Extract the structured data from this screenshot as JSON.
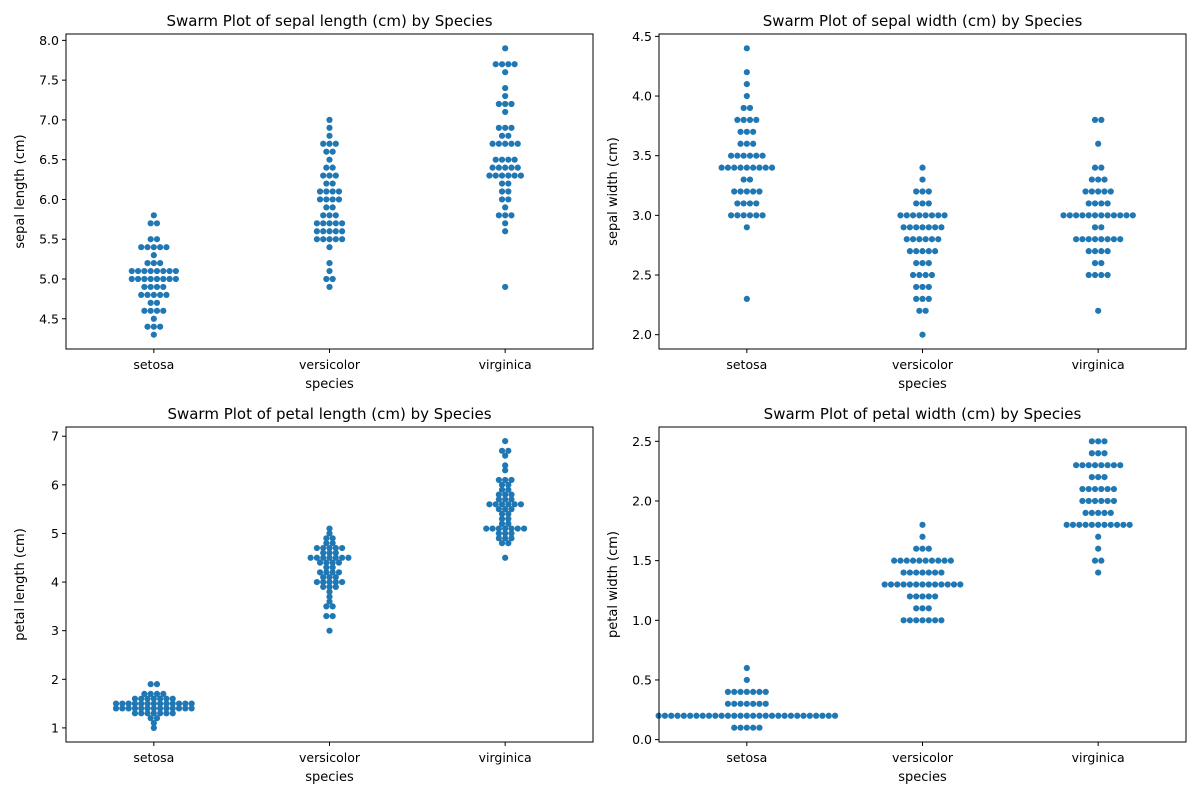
{
  "chart_data": [
    {
      "type": "scatter",
      "subtype": "swarm",
      "title": "Swarm Plot of sepal length (cm) by Species",
      "xlabel": "species",
      "ylabel": "sepal length (cm)",
      "categories": [
        "setosa",
        "versicolor",
        "virginica"
      ],
      "ylim": [
        4.12,
        8.08
      ],
      "yticks": [
        4.5,
        5.0,
        5.5,
        6.0,
        6.5,
        7.0,
        7.5,
        8.0
      ],
      "ytick_labels": [
        "4.5",
        "5.0",
        "5.5",
        "6.0",
        "6.5",
        "7.0",
        "7.5",
        "8.0"
      ],
      "color": "#1f77b4",
      "values": [
        [
          5.1,
          4.9,
          4.7,
          4.6,
          5.0,
          5.4,
          4.6,
          5.0,
          4.4,
          4.9,
          5.4,
          4.8,
          4.8,
          4.3,
          5.8,
          5.7,
          5.4,
          5.1,
          5.7,
          5.1,
          5.4,
          5.1,
          4.6,
          5.1,
          4.8,
          5.0,
          5.0,
          5.2,
          5.2,
          4.7,
          4.8,
          5.4,
          5.2,
          5.5,
          4.9,
          5.0,
          5.5,
          4.9,
          4.4,
          5.1,
          5.0,
          4.5,
          4.4,
          5.0,
          5.1,
          4.8,
          5.1,
          4.6,
          5.3,
          5.0
        ],
        [
          7.0,
          6.4,
          6.9,
          5.5,
          6.5,
          5.7,
          6.3,
          4.9,
          6.6,
          5.2,
          5.0,
          5.9,
          6.0,
          6.1,
          5.6,
          6.7,
          5.6,
          5.8,
          6.2,
          5.6,
          5.9,
          6.1,
          6.3,
          6.1,
          6.4,
          6.6,
          6.8,
          6.7,
          6.0,
          5.7,
          5.5,
          5.5,
          5.8,
          6.0,
          5.4,
          6.0,
          6.7,
          6.3,
          5.6,
          5.5,
          5.5,
          6.1,
          5.8,
          5.0,
          5.6,
          5.7,
          5.7,
          6.2,
          5.1,
          5.7
        ],
        [
          6.3,
          5.8,
          7.1,
          6.3,
          6.5,
          7.6,
          4.9,
          7.3,
          6.7,
          7.2,
          6.5,
          6.4,
          6.8,
          5.7,
          5.8,
          6.4,
          6.5,
          7.7,
          7.7,
          6.0,
          6.9,
          5.6,
          7.7,
          6.3,
          6.7,
          7.2,
          6.2,
          6.1,
          6.4,
          7.2,
          7.4,
          7.9,
          6.4,
          6.3,
          6.1,
          7.7,
          6.3,
          6.4,
          6.0,
          6.9,
          6.7,
          6.9,
          5.8,
          6.8,
          6.7,
          6.7,
          6.3,
          6.5,
          6.2,
          5.9
        ]
      ]
    },
    {
      "type": "scatter",
      "subtype": "swarm",
      "title": "Swarm Plot of sepal width (cm) by Species",
      "xlabel": "species",
      "ylabel": "sepal width (cm)",
      "categories": [
        "setosa",
        "versicolor",
        "virginica"
      ],
      "ylim": [
        1.88,
        4.52
      ],
      "yticks": [
        2.0,
        2.5,
        3.0,
        3.5,
        4.0,
        4.5
      ],
      "ytick_labels": [
        "2.0",
        "2.5",
        "3.0",
        "3.5",
        "4.0",
        "4.5"
      ],
      "color": "#1f77b4",
      "values": [
        [
          3.5,
          3.0,
          3.2,
          3.1,
          3.6,
          3.9,
          3.4,
          3.4,
          2.9,
          3.1,
          3.7,
          3.4,
          3.0,
          3.0,
          4.0,
          4.4,
          3.9,
          3.5,
          3.8,
          3.8,
          3.4,
          3.7,
          3.6,
          3.3,
          3.4,
          3.0,
          3.4,
          3.5,
          3.4,
          3.2,
          3.1,
          3.4,
          4.1,
          4.2,
          3.1,
          3.2,
          3.5,
          3.6,
          3.0,
          3.4,
          3.5,
          2.3,
          3.2,
          3.5,
          3.8,
          3.0,
          3.8,
          3.2,
          3.7,
          3.3
        ],
        [
          3.2,
          3.2,
          3.1,
          2.3,
          2.8,
          2.8,
          3.3,
          2.4,
          2.9,
          2.7,
          2.0,
          3.0,
          2.2,
          2.9,
          2.9,
          3.1,
          3.0,
          2.7,
          2.2,
          2.5,
          3.2,
          2.8,
          2.5,
          2.8,
          2.9,
          3.0,
          2.8,
          3.0,
          2.9,
          2.6,
          2.4,
          2.4,
          2.7,
          2.7,
          3.0,
          3.4,
          3.1,
          2.3,
          3.0,
          2.5,
          2.6,
          3.0,
          2.6,
          2.3,
          2.7,
          3.0,
          2.9,
          2.9,
          2.5,
          2.8
        ],
        [
          3.3,
          2.7,
          3.0,
          2.9,
          3.0,
          3.0,
          2.5,
          2.9,
          2.5,
          3.6,
          3.2,
          2.7,
          3.0,
          2.5,
          2.8,
          3.2,
          3.0,
          3.8,
          2.6,
          2.2,
          3.2,
          2.8,
          2.8,
          2.7,
          3.3,
          3.2,
          2.8,
          3.0,
          2.8,
          3.0,
          2.8,
          3.8,
          2.8,
          2.8,
          2.6,
          3.0,
          3.4,
          3.1,
          3.0,
          3.1,
          3.1,
          3.1,
          2.7,
          3.2,
          3.3,
          3.0,
          2.5,
          3.0,
          3.4,
          3.0
        ]
      ]
    },
    {
      "type": "scatter",
      "subtype": "swarm",
      "title": "Swarm Plot of petal length (cm) by Species",
      "xlabel": "species",
      "ylabel": "petal length (cm)",
      "categories": [
        "setosa",
        "versicolor",
        "virginica"
      ],
      "ylim": [
        0.71,
        7.19
      ],
      "yticks": [
        1,
        2,
        3,
        4,
        5,
        6,
        7
      ],
      "ytick_labels": [
        "1",
        "2",
        "3",
        "4",
        "5",
        "6",
        "7"
      ],
      "color": "#1f77b4",
      "values": [
        [
          1.4,
          1.4,
          1.3,
          1.5,
          1.4,
          1.7,
          1.4,
          1.5,
          1.4,
          1.5,
          1.5,
          1.6,
          1.4,
          1.1,
          1.2,
          1.5,
          1.3,
          1.4,
          1.7,
          1.5,
          1.7,
          1.5,
          1.0,
          1.7,
          1.9,
          1.6,
          1.6,
          1.5,
          1.4,
          1.6,
          1.6,
          1.5,
          1.5,
          1.4,
          1.5,
          1.2,
          1.3,
          1.4,
          1.3,
          1.5,
          1.3,
          1.3,
          1.3,
          1.6,
          1.9,
          1.4,
          1.6,
          1.4,
          1.5,
          1.4
        ],
        [
          4.7,
          4.5,
          4.9,
          4.0,
          4.6,
          4.5,
          4.7,
          3.3,
          4.6,
          3.9,
          3.5,
          4.2,
          4.0,
          4.7,
          3.6,
          4.4,
          4.5,
          4.1,
          4.5,
          3.9,
          4.8,
          4.0,
          4.9,
          4.7,
          4.3,
          4.4,
          4.8,
          5.0,
          4.5,
          3.5,
          3.8,
          3.7,
          3.9,
          5.1,
          4.5,
          4.5,
          4.7,
          4.4,
          4.1,
          4.0,
          4.4,
          4.6,
          4.0,
          3.3,
          4.2,
          4.2,
          4.2,
          4.3,
          3.0,
          4.1
        ],
        [
          6.0,
          5.1,
          5.9,
          5.6,
          5.8,
          6.6,
          4.5,
          6.3,
          5.8,
          6.1,
          5.1,
          5.3,
          5.5,
          5.0,
          5.1,
          5.3,
          5.5,
          6.7,
          6.9,
          5.0,
          5.7,
          4.9,
          6.7,
          4.9,
          5.7,
          6.0,
          4.8,
          4.9,
          5.6,
          5.8,
          6.1,
          6.4,
          5.6,
          5.1,
          5.6,
          6.1,
          5.6,
          5.5,
          4.8,
          5.4,
          5.6,
          5.1,
          5.1,
          5.9,
          5.7,
          5.2,
          5.0,
          5.2,
          5.4,
          5.1
        ]
      ]
    },
    {
      "type": "scatter",
      "subtype": "swarm",
      "title": "Swarm Plot of petal width (cm) by Species",
      "xlabel": "species",
      "ylabel": "petal width (cm)",
      "categories": [
        "setosa",
        "versicolor",
        "virginica"
      ],
      "ylim": [
        -0.02,
        2.62
      ],
      "yticks": [
        0.0,
        0.5,
        1.0,
        1.5,
        2.0,
        2.5
      ],
      "ytick_labels": [
        "0.0",
        "0.5",
        "1.0",
        "1.5",
        "2.0",
        "2.5"
      ],
      "color": "#1f77b4",
      "values": [
        [
          0.2,
          0.2,
          0.2,
          0.2,
          0.2,
          0.4,
          0.3,
          0.2,
          0.2,
          0.1,
          0.2,
          0.2,
          0.1,
          0.1,
          0.2,
          0.4,
          0.4,
          0.3,
          0.3,
          0.3,
          0.2,
          0.4,
          0.2,
          0.5,
          0.2,
          0.2,
          0.4,
          0.2,
          0.2,
          0.2,
          0.2,
          0.4,
          0.1,
          0.2,
          0.2,
          0.2,
          0.2,
          0.1,
          0.2,
          0.2,
          0.3,
          0.3,
          0.2,
          0.6,
          0.4,
          0.3,
          0.2,
          0.2,
          0.2,
          0.2
        ],
        [
          1.4,
          1.5,
          1.5,
          1.3,
          1.5,
          1.3,
          1.6,
          1.0,
          1.3,
          1.4,
          1.0,
          1.5,
          1.0,
          1.4,
          1.3,
          1.4,
          1.5,
          1.0,
          1.5,
          1.1,
          1.8,
          1.3,
          1.5,
          1.2,
          1.3,
          1.4,
          1.4,
          1.7,
          1.5,
          1.0,
          1.1,
          1.0,
          1.2,
          1.6,
          1.5,
          1.6,
          1.5,
          1.3,
          1.3,
          1.3,
          1.2,
          1.4,
          1.2,
          1.0,
          1.3,
          1.2,
          1.3,
          1.3,
          1.1,
          1.3
        ],
        [
          2.5,
          1.9,
          2.1,
          1.8,
          2.2,
          2.1,
          1.7,
          1.8,
          1.8,
          2.5,
          2.0,
          1.9,
          2.1,
          2.0,
          2.4,
          2.3,
          1.8,
          2.2,
          2.3,
          1.5,
          2.3,
          2.0,
          2.0,
          1.8,
          2.1,
          1.8,
          1.8,
          1.8,
          2.1,
          1.6,
          1.9,
          2.0,
          2.2,
          1.5,
          1.4,
          2.3,
          2.4,
          1.8,
          1.8,
          2.1,
          2.4,
          2.3,
          1.9,
          2.3,
          2.5,
          2.3,
          1.9,
          2.0,
          2.3,
          1.8
        ]
      ]
    }
  ]
}
